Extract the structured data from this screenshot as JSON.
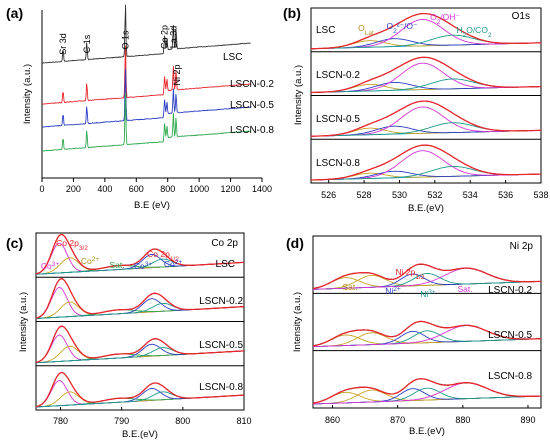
{
  "chart_data": [
    {
      "panel": "(a)",
      "type": "line",
      "xlabel": "B.E (eV)",
      "ylabel": "Intensity (a.u.)",
      "xlim": [
        0,
        1400
      ],
      "xticks": [
        0,
        200,
        400,
        600,
        800,
        1000,
        1200,
        1400
      ],
      "annotations": [
        "Sr 3d",
        "C 1s",
        "O 1s",
        "Co 2p",
        "La 3d",
        "Ni 2p"
      ],
      "series": [
        {
          "name": "LSC",
          "color": "#333333"
        },
        {
          "name": "LSCN-0.2",
          "color": "#e8262b"
        },
        {
          "name": "LSCN-0.5",
          "color": "#2c3fc4"
        },
        {
          "name": "LSCN-0.8",
          "color": "#2fa84f"
        }
      ],
      "baselines": [
        115,
        74,
        51,
        27
      ],
      "peaks": [
        {
          "x": 134,
          "h": 12
        },
        {
          "x": 285,
          "h": 18
        },
        {
          "x": 531,
          "h": 55
        },
        {
          "x": 780,
          "h": 18
        },
        {
          "x": 795,
          "h": 12
        },
        {
          "x": 836,
          "h": 24
        },
        {
          "x": 853,
          "h": 20
        }
      ]
    },
    {
      "panel": "(b)",
      "type": "line",
      "title": "O1s",
      "xlabel": "B.E.(eV)",
      "ylabel": "Intensity (a.u.)",
      "xlim": [
        525,
        538
      ],
      "xticks": [
        526,
        528,
        530,
        532,
        534,
        536,
        538
      ],
      "annotations": [
        {
          "text": "O_Lat",
          "color": "#b08a1a"
        },
        {
          "text": "O2²⁻/O⁻",
          "color": "#2c3fc4"
        },
        {
          "text": "O2/OH⁻",
          "color": "#d534d5"
        },
        {
          "text": "H2O/CO2",
          "color": "#1f9a8a"
        }
      ],
      "samples": [
        "LSC",
        "LSCN-0.2",
        "LSCN-0.5",
        "LSCN-0.8"
      ],
      "components": [
        {
          "name": "O_Lat",
          "center": 528.3,
          "width": 0.9,
          "color": "#c9a227"
        },
        {
          "name": "O2²⁻/O⁻",
          "center": 529.7,
          "width": 1.0,
          "color": "#2c3fc4"
        },
        {
          "name": "O2/OH⁻",
          "center": 531.3,
          "width": 1.2,
          "color": "#d534d5"
        },
        {
          "name": "H2O/CO2",
          "center": 533.0,
          "width": 1.2,
          "color": "#1f9a8a"
        }
      ],
      "amplitudes": [
        [
          1.0,
          1.2,
          4.0,
          1.5
        ],
        [
          1.0,
          1.2,
          4.0,
          1.5
        ],
        [
          1.0,
          1.2,
          4.0,
          1.5
        ],
        [
          0.8,
          1.0,
          4.0,
          1.5
        ]
      ]
    },
    {
      "panel": "(c)",
      "type": "line",
      "title": "Co 2p",
      "xlabel": "B.E.(eV)",
      "ylabel": "Intensity (a.u.)",
      "xlim": [
        776,
        810
      ],
      "xticks": [
        780,
        790,
        800,
        810
      ],
      "annotations": [
        {
          "text": "Co 2p3/2",
          "color": "#e8262b"
        },
        {
          "text": "Co3+",
          "color": "#d534d5"
        },
        {
          "text": "Co2+",
          "color": "#b08a1a"
        },
        {
          "text": "Sat.",
          "color": "#2fa84f"
        },
        {
          "text": "Co 2p1/2",
          "color": "#e8262b"
        },
        {
          "text": "Co3+",
          "color": "#2c3fc4"
        },
        {
          "text": "Co2+",
          "color": "#2c3fc4"
        }
      ],
      "samples": [
        "LSC",
        "LSCN-0.2",
        "LSCN-0.5",
        "LSCN-0.8"
      ],
      "components": [
        {
          "name": "Co3+",
          "center": 779.8,
          "width": 1.3,
          "color": "#d534d5"
        },
        {
          "name": "Co2+",
          "center": 781.5,
          "width": 1.5,
          "color": "#c9a227"
        },
        {
          "name": "Sat.",
          "center": 789.5,
          "width": 2.6,
          "color": "#2fa84f"
        },
        {
          "name": "Co3+",
          "center": 794.9,
          "width": 1.5,
          "color": "#2c3fc4"
        },
        {
          "name": "Co2+",
          "center": 796.7,
          "width": 1.6,
          "color": "#1f9a8a"
        }
      ],
      "amplitudes": [
        [
          4.5,
          2.2,
          0.6,
          2.0,
          1.2
        ],
        [
          4.5,
          2.2,
          0.6,
          2.0,
          1.2
        ],
        [
          4.0,
          2.2,
          0.6,
          1.8,
          1.2
        ],
        [
          3.8,
          2.0,
          0.6,
          1.8,
          1.2
        ]
      ]
    },
    {
      "panel": "(d)",
      "type": "line",
      "title": "Ni 2p",
      "xlabel": "B.E.(eV)",
      "ylabel": "Intensity (a.u.)",
      "xlim": [
        857,
        892
      ],
      "xticks": [
        860,
        870,
        880,
        890
      ],
      "annotations": [
        {
          "text": "Ni 2p1/2",
          "color": "#e8262b"
        },
        {
          "text": "Sat.",
          "color": "#b08a1a"
        },
        {
          "text": "Ni2+",
          "color": "#2c3fc4"
        },
        {
          "text": "Ni3+",
          "color": "#1f9a8a"
        },
        {
          "text": "Sat.",
          "color": "#d534d5"
        }
      ],
      "samples": [
        "LSCN-0.2",
        "LSCN-0.5",
        "LSCN-0.8"
      ],
      "components": [
        {
          "name": "Sat.",
          "center": 862.0,
          "width": 2.2,
          "color": "#c9a227"
        },
        {
          "name": "Sat.",
          "center": 866.0,
          "width": 2.2,
          "color": "#c9a227"
        },
        {
          "name": "Ni2+",
          "center": 872.3,
          "width": 1.8,
          "color": "#2c3fc4"
        },
        {
          "name": "Ni3+",
          "center": 874.5,
          "width": 2.0,
          "color": "#1f9a8a"
        },
        {
          "name": "Sat.",
          "center": 880.5,
          "width": 3.2,
          "color": "#d534d5"
        }
      ],
      "amplitudes": [
        [
          1.6,
          1.8,
          1.8,
          1.8,
          2.4
        ],
        [
          1.6,
          1.8,
          1.8,
          1.8,
          2.4
        ],
        [
          1.6,
          1.8,
          1.8,
          1.8,
          2.4
        ]
      ]
    }
  ]
}
